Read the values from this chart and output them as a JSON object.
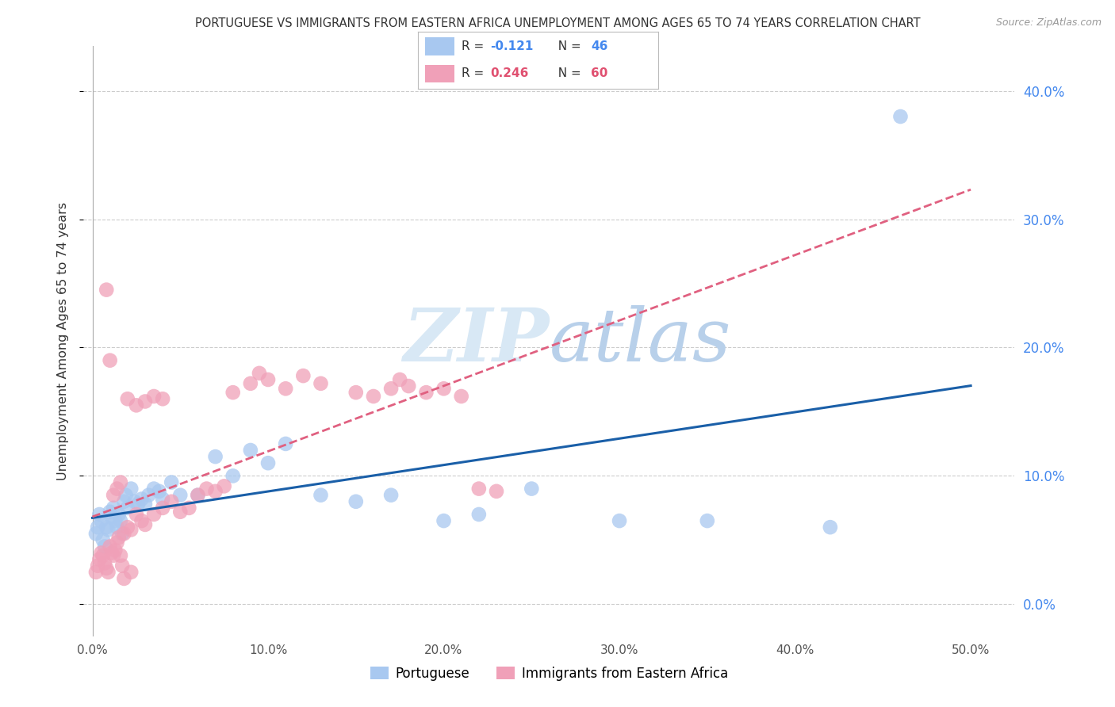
{
  "title": "PORTUGUESE VS IMMIGRANTS FROM EASTERN AFRICA UNEMPLOYMENT AMONG AGES 65 TO 74 YEARS CORRELATION CHART",
  "source": "Source: ZipAtlas.com",
  "ylabel": "Unemployment Among Ages 65 to 74 years",
  "ytick_labels": [
    "0.0%",
    "10.0%",
    "20.0%",
    "30.0%",
    "40.0%"
  ],
  "ytick_vals": [
    0.0,
    0.1,
    0.2,
    0.3,
    0.4
  ],
  "xtick_labels": [
    "0.0%",
    "10.0%",
    "20.0%",
    "30.0%",
    "40.0%",
    "50.0%"
  ],
  "xtick_vals": [
    0.0,
    0.1,
    0.2,
    0.3,
    0.4,
    0.5
  ],
  "xlim": [
    -0.005,
    0.525
  ],
  "ylim": [
    -0.025,
    0.435
  ],
  "color_port_scatter": "#a8c8f0",
  "color_ea_scatter": "#f0a0b8",
  "color_port_trend": "#1a5fa8",
  "color_ea_trend": "#e06080",
  "legend_box_color": "#dddddd",
  "portuguese_x": [
    0.002,
    0.003,
    0.004,
    0.005,
    0.006,
    0.007,
    0.008,
    0.009,
    0.01,
    0.011,
    0.012,
    0.013,
    0.014,
    0.015,
    0.016,
    0.017,
    0.018,
    0.019,
    0.02,
    0.022,
    0.024,
    0.026,
    0.028,
    0.03,
    0.032,
    0.035,
    0.038,
    0.04,
    0.045,
    0.05,
    0.06,
    0.07,
    0.08,
    0.09,
    0.1,
    0.11,
    0.13,
    0.15,
    0.17,
    0.2,
    0.22,
    0.25,
    0.3,
    0.35,
    0.42,
    0.46
  ],
  "portuguese_y": [
    0.055,
    0.06,
    0.07,
    0.065,
    0.05,
    0.045,
    0.06,
    0.058,
    0.072,
    0.068,
    0.075,
    0.065,
    0.06,
    0.07,
    0.065,
    0.055,
    0.08,
    0.085,
    0.075,
    0.09,
    0.08,
    0.078,
    0.082,
    0.078,
    0.085,
    0.09,
    0.088,
    0.082,
    0.095,
    0.085,
    0.085,
    0.115,
    0.1,
    0.12,
    0.11,
    0.125,
    0.085,
    0.08,
    0.085,
    0.065,
    0.07,
    0.09,
    0.065,
    0.065,
    0.06,
    0.38
  ],
  "eastern_africa_x": [
    0.002,
    0.003,
    0.004,
    0.005,
    0.006,
    0.007,
    0.008,
    0.009,
    0.01,
    0.011,
    0.012,
    0.013,
    0.014,
    0.015,
    0.016,
    0.017,
    0.018,
    0.02,
    0.022,
    0.025,
    0.028,
    0.03,
    0.035,
    0.04,
    0.045,
    0.05,
    0.055,
    0.06,
    0.065,
    0.07,
    0.075,
    0.08,
    0.09,
    0.095,
    0.1,
    0.11,
    0.12,
    0.13,
    0.15,
    0.16,
    0.17,
    0.175,
    0.18,
    0.19,
    0.2,
    0.21,
    0.22,
    0.23,
    0.02,
    0.025,
    0.03,
    0.035,
    0.04,
    0.008,
    0.01,
    0.012,
    0.014,
    0.016,
    0.018,
    0.022
  ],
  "eastern_africa_y": [
    0.025,
    0.03,
    0.035,
    0.04,
    0.038,
    0.032,
    0.028,
    0.025,
    0.045,
    0.04,
    0.038,
    0.042,
    0.048,
    0.052,
    0.038,
    0.03,
    0.055,
    0.06,
    0.058,
    0.07,
    0.065,
    0.062,
    0.07,
    0.075,
    0.08,
    0.072,
    0.075,
    0.085,
    0.09,
    0.088,
    0.092,
    0.165,
    0.172,
    0.18,
    0.175,
    0.168,
    0.178,
    0.172,
    0.165,
    0.162,
    0.168,
    0.175,
    0.17,
    0.165,
    0.168,
    0.162,
    0.09,
    0.088,
    0.16,
    0.155,
    0.158,
    0.162,
    0.16,
    0.245,
    0.19,
    0.085,
    0.09,
    0.095,
    0.02,
    0.025
  ]
}
